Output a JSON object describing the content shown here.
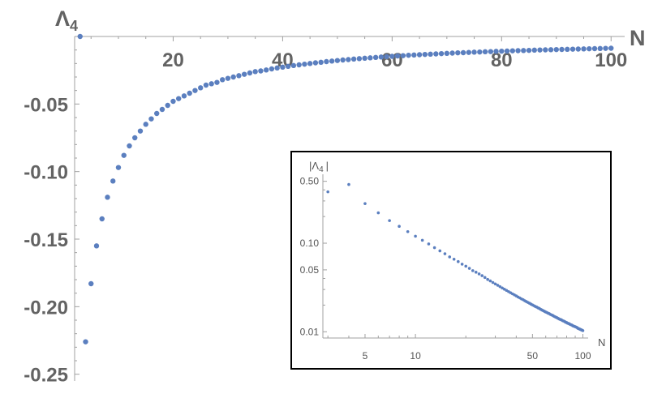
{
  "chart_data": [
    {
      "type": "scatter",
      "ylabel": "Λ",
      "ylabel_sub": "4",
      "xlabel": "N",
      "xlim": [
        2,
        101
      ],
      "ylim": [
        -0.255,
        0.0
      ],
      "x_ticks": [
        20,
        40,
        60,
        80,
        100
      ],
      "x_tick_labels": [
        "20",
        "40",
        "60",
        "80",
        "100"
      ],
      "y_ticks": [
        -0.05,
        -0.1,
        -0.15,
        -0.2,
        -0.25
      ],
      "y_tick_labels": [
        "-0.05",
        "-0.10",
        "-0.15",
        "-0.20",
        "-0.25"
      ],
      "marker_color": "#5b7fbf",
      "grid": false,
      "series": [
        {
          "x": [
            3,
            4,
            5,
            6,
            7,
            8,
            9,
            10,
            11,
            12,
            13,
            14,
            15,
            16,
            17,
            18,
            19,
            20,
            21,
            22,
            23,
            24,
            25,
            26,
            27,
            28,
            29,
            30,
            31,
            32,
            33,
            34,
            35,
            36,
            37,
            38,
            39,
            40,
            41,
            42,
            43,
            44,
            45,
            46,
            47,
            48,
            49,
            50,
            51,
            52,
            53,
            54,
            55,
            56,
            57,
            58,
            59,
            60,
            61,
            62,
            63,
            64,
            65,
            66,
            67,
            68,
            69,
            70,
            71,
            72,
            73,
            74,
            75,
            76,
            77,
            78,
            79,
            80,
            81,
            82,
            83,
            84,
            85,
            86,
            87,
            88,
            89,
            90,
            91,
            92,
            93,
            94,
            95,
            96,
            97,
            98,
            99,
            100
          ],
          "y": [
            0.0,
            -0.226,
            -0.183,
            -0.155,
            -0.135,
            -0.119,
            -0.107,
            -0.097,
            -0.088,
            -0.081,
            -0.075,
            -0.07,
            -0.065,
            -0.061,
            -0.057,
            -0.054,
            -0.051,
            -0.048,
            -0.046,
            -0.044,
            -0.042,
            -0.04,
            -0.038,
            -0.036,
            -0.035,
            -0.034,
            -0.032,
            -0.031,
            -0.03,
            -0.029,
            -0.028,
            -0.027,
            -0.026,
            -0.0255,
            -0.0248,
            -0.024,
            -0.0233,
            -0.0227,
            -0.0221,
            -0.0215,
            -0.021,
            -0.0205,
            -0.02,
            -0.0195,
            -0.0191,
            -0.0186,
            -0.0182,
            -0.0178,
            -0.0174,
            -0.0171,
            -0.0167,
            -0.0164,
            -0.0161,
            -0.0158,
            -0.0155,
            -0.0152,
            -0.0149,
            -0.0147,
            -0.0144,
            -0.0142,
            -0.0139,
            -0.0137,
            -0.0135,
            -0.0133,
            -0.0131,
            -0.0129,
            -0.0127,
            -0.0125,
            -0.0123,
            -0.0121,
            -0.012,
            -0.0118,
            -0.0116,
            -0.0115,
            -0.0113,
            -0.0112,
            -0.011,
            -0.0109,
            -0.0108,
            -0.0106,
            -0.0105,
            -0.0104,
            -0.0103,
            -0.0101,
            -0.01,
            -0.0099,
            -0.0098,
            -0.0097,
            -0.0096,
            -0.0095,
            -0.0094,
            -0.0093,
            -0.0092,
            -0.0091,
            -0.009,
            -0.0089,
            -0.0088,
            -0.0087
          ]
        }
      ]
    },
    {
      "type": "scatter",
      "scale": "log-log",
      "ylabel": "|Λ",
      "ylabel_sub": "4",
      "ylabel_end": "|",
      "xlabel": "N",
      "xlim": [
        2.8,
        104
      ],
      "ylim": [
        0.0085,
        0.6
      ],
      "x_ticks": [
        5,
        10,
        50,
        100
      ],
      "x_tick_labels": [
        "5",
        "10",
        "50",
        "100"
      ],
      "y_ticks": [
        0.5,
        0.1,
        0.05,
        0.01
      ],
      "y_tick_labels": [
        "0.50",
        "0.10",
        "0.05",
        "0.01"
      ],
      "marker_color": "#5b7fbf",
      "grid": false,
      "series": [
        {
          "x": [
            3,
            4,
            5,
            6,
            7,
            8,
            9,
            10,
            11,
            12,
            13,
            14,
            15,
            16,
            17,
            18,
            19,
            20,
            21,
            22,
            23,
            24,
            25,
            26,
            27,
            28,
            29,
            30,
            31,
            32,
            33,
            34,
            35,
            36,
            37,
            38,
            39,
            40,
            41,
            42,
            43,
            44,
            45,
            46,
            47,
            48,
            49,
            50,
            51,
            52,
            53,
            54,
            55,
            56,
            57,
            58,
            59,
            60,
            61,
            62,
            63,
            64,
            65,
            66,
            67,
            68,
            69,
            70,
            71,
            72,
            73,
            74,
            75,
            76,
            77,
            78,
            79,
            80,
            81,
            82,
            83,
            84,
            85,
            86,
            87,
            88,
            89,
            90,
            91,
            92,
            93,
            94,
            95,
            96,
            97,
            98,
            99,
            100
          ],
          "y": [
            0.38,
            0.46,
            0.28,
            0.22,
            0.18,
            0.155,
            0.135,
            0.12,
            0.108,
            0.098,
            0.089,
            0.082,
            0.076,
            0.07,
            0.066,
            0.062,
            0.058,
            0.055,
            0.052,
            0.049,
            0.047,
            0.045,
            0.043,
            0.041,
            0.039,
            0.0375,
            0.036,
            0.0347,
            0.0335,
            0.0323,
            0.0312,
            0.0302,
            0.0293,
            0.0284,
            0.0276,
            0.0268,
            0.0261,
            0.0254,
            0.0247,
            0.0241,
            0.0235,
            0.023,
            0.0224,
            0.0219,
            0.0214,
            0.021,
            0.0205,
            0.0201,
            0.0197,
            0.0193,
            0.019,
            0.0186,
            0.0183,
            0.0179,
            0.0176,
            0.0173,
            0.017,
            0.0167,
            0.0165,
            0.0162,
            0.016,
            0.0157,
            0.0155,
            0.0153,
            0.015,
            0.0148,
            0.0146,
            0.0144,
            0.0142,
            0.014,
            0.0138,
            0.0137,
            0.0135,
            0.0133,
            0.0132,
            0.013,
            0.0128,
            0.0127,
            0.0125,
            0.0124,
            0.0123,
            0.0121,
            0.012,
            0.0119,
            0.0117,
            0.0116,
            0.0115,
            0.0114,
            0.0113,
            0.0112,
            0.011,
            0.0109,
            0.0108,
            0.0107,
            0.0106,
            0.0105,
            0.0104,
            0.0103
          ]
        }
      ]
    }
  ]
}
